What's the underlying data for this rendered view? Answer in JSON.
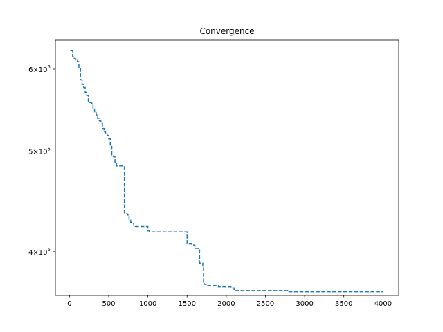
{
  "chart_data": {
    "type": "line",
    "title": "Convergence",
    "xlabel": "",
    "ylabel": "",
    "xlim": [
      -180,
      4200
    ],
    "ylim": [
      363000,
      640000
    ],
    "yscale": "log",
    "grid": false,
    "xticks": [
      0,
      500,
      1000,
      1500,
      2000,
      2500,
      3000,
      3500,
      4000
    ],
    "xtick_labels": [
      "0",
      "500",
      "1000",
      "1500",
      "2000",
      "2500",
      "3000",
      "3500",
      "4000"
    ],
    "yticks": [
      400000,
      500000,
      600000
    ],
    "ytick_labels": [
      {
        "mantissa": "4",
        "base": "10",
        "exp": "5"
      },
      {
        "mantissa": "5",
        "base": "10",
        "exp": "5"
      },
      {
        "mantissa": "6",
        "base": "10",
        "exp": "5"
      }
    ],
    "series": [
      {
        "color": "#1f77b4",
        "linestyle": "dashed",
        "x": [
          10,
          40,
          60,
          80,
          100,
          120,
          140,
          160,
          180,
          200,
          220,
          240,
          260,
          280,
          300,
          320,
          340,
          360,
          380,
          400,
          420,
          440,
          460,
          480,
          500,
          520,
          540,
          560,
          580,
          600,
          620,
          640,
          660,
          680,
          700,
          720,
          740,
          760,
          780,
          800,
          820,
          840,
          860,
          880,
          900,
          920,
          940,
          960,
          980,
          1000,
          1020,
          1040,
          1060,
          1080,
          1100,
          1200,
          1300,
          1400,
          1480,
          1500,
          1560,
          1600,
          1640,
          1660,
          1680,
          1700,
          1710,
          1720,
          1740,
          1760,
          1800,
          1850,
          1900,
          1940,
          1960,
          2000,
          2060,
          2080,
          2100,
          2140,
          2300,
          2500,
          2700,
          2760,
          2800,
          3000,
          3300,
          3600,
          4000
        ],
        "y": [
          625000,
          617000,
          614000,
          612000,
          610000,
          601000,
          586000,
          580000,
          576000,
          570000,
          566000,
          558000,
          557000,
          556000,
          550000,
          545000,
          542000,
          538000,
          535000,
          532000,
          526000,
          522000,
          519000,
          518000,
          514000,
          507000,
          496000,
          494000,
          488000,
          484000,
          484000,
          484000,
          484000,
          484000,
          436000,
          435000,
          434000,
          429000,
          427000,
          426000,
          424000,
          423000,
          423000,
          423000,
          423000,
          423000,
          423000,
          423000,
          423000,
          419000,
          418000,
          418000,
          418000,
          418000,
          418000,
          418000,
          418000,
          418000,
          418000,
          407000,
          406000,
          403000,
          403000,
          390000,
          390000,
          386000,
          374000,
          372000,
          372000,
          371000,
          371000,
          371000,
          370000,
          370000,
          370000,
          370000,
          369000,
          369000,
          367000,
          367000,
          367000,
          367000,
          367000,
          367000,
          366000,
          366000,
          366000,
          366000,
          366000
        ]
      }
    ]
  }
}
